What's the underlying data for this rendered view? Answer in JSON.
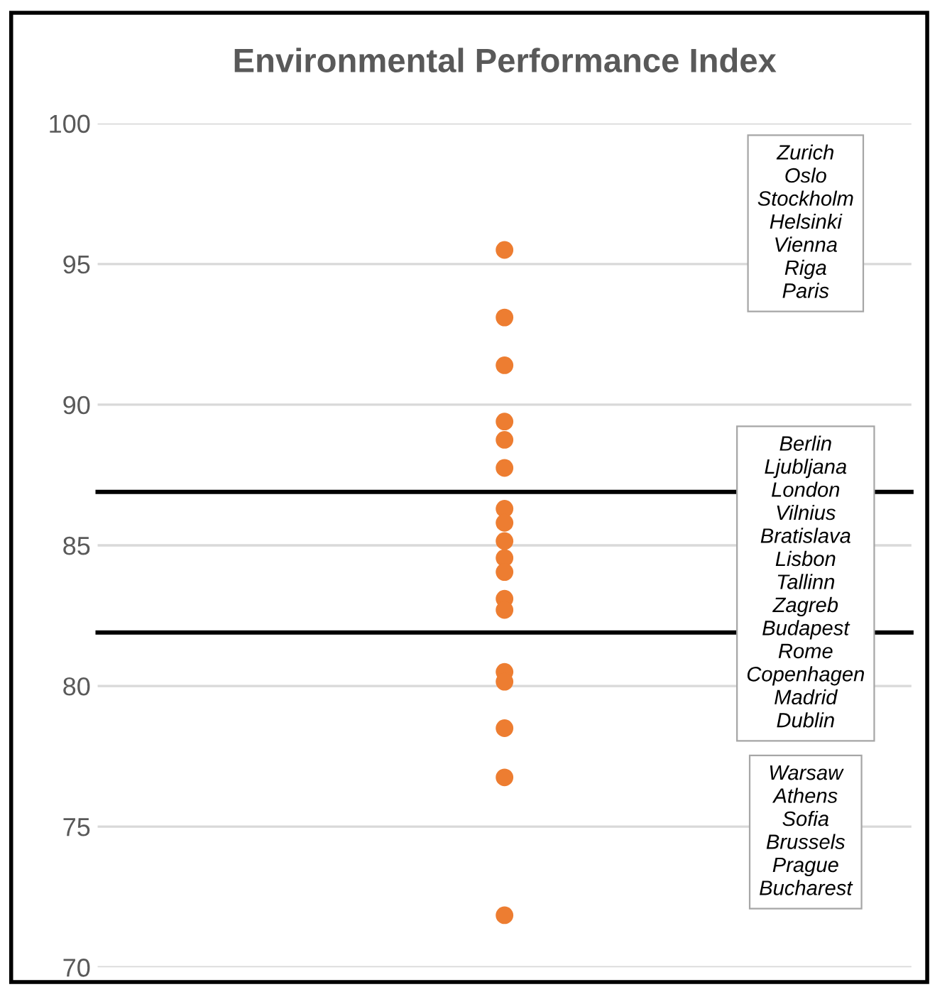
{
  "chart_data": {
    "type": "scatter",
    "title": "Environmental Performance Index",
    "categories": [
      null
    ],
    "series": [
      {
        "color": "#ed7d31",
        "values": [
          95.5
        ]
      },
      {
        "color": "#ed7d31",
        "values": [
          93.1
        ]
      },
      {
        "color": "#ed7d31",
        "values": [
          91.4
        ]
      },
      {
        "color": "#ed7d31",
        "values": [
          89.4
        ]
      },
      {
        "color": "#ed7d31",
        "values": [
          88.75
        ]
      },
      {
        "color": "#ed7d31",
        "values": [
          87.75
        ]
      },
      {
        "color": "#ed7d31",
        "values": [
          86.3
        ]
      },
      {
        "color": "#ed7d31",
        "values": [
          85.8
        ]
      },
      {
        "color": "#ed7d31",
        "values": [
          85.15
        ]
      },
      {
        "color": "#ed7d31",
        "values": [
          84.55
        ]
      },
      {
        "color": "#ed7d31",
        "values": [
          84.05
        ]
      },
      {
        "color": "#ed7d31",
        "values": [
          83.1
        ]
      },
      {
        "color": "#ed7d31",
        "values": [
          82.7
        ]
      },
      {
        "color": "#ed7d31",
        "values": [
          80.5
        ]
      },
      {
        "color": "#ed7d31",
        "values": [
          80.15
        ]
      },
      {
        "color": "#ed7d31",
        "values": [
          78.5
        ]
      },
      {
        "color": "#ed7d31",
        "values": [
          76.75
        ]
      },
      {
        "color": "#ed7d31",
        "values": [
          71.85
        ]
      }
    ],
    "ylim": [
      70,
      100
    ],
    "yticks": [
      70,
      75,
      80,
      85,
      90,
      95,
      100
    ],
    "grid": "y",
    "tick_labels": "y",
    "marker": "circle",
    "ref_lines": [
      {
        "axis": "y",
        "value": 86.9,
        "color": "#000000"
      },
      {
        "axis": "y",
        "value": 81.9,
        "color": "#000000"
      }
    ],
    "annotations": [
      "Zurich\nOslo\nStockholm\nHelsinki\nVienna\nRiga\nParis",
      "Berlin\nLjubljana\nLondon\nVilnius\nBratislava\nLisbon\nTallinn\nZagreb\nBudapest\nRome\nCopenhagen\nMadrid\nDublin",
      "Warsaw\nAthens\nSofia\nBrussels\nPrague\nBucharest"
    ]
  }
}
